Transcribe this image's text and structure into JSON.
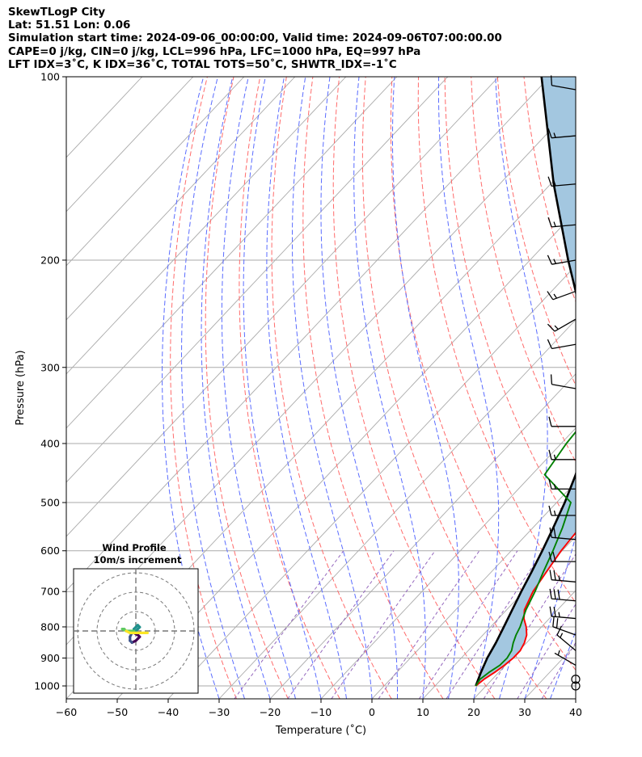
{
  "header": {
    "line1": "SkewTLogP City",
    "line2": "Lat: 51.51   Lon: 0.06",
    "line3": "Simulation start time: 2024-09-06_00:00:00, Valid time: 2024-09-06T07:00:00.00",
    "line4": "CAPE=0 j/kg, CIN=0 j/kg, LCL=996 hPa, LFC=1000 hPa, EQ=997 hPa",
    "line5": "LFT IDX=3˚C, K IDX=36˚C, TOTAL TOTS=50˚C, SHWTR_IDX=-1˚C"
  },
  "chart_data": {
    "type": "skewt",
    "xlabel": "Temperature (˚C)",
    "ylabel": "Pressure (hPa)",
    "xlim": [
      -60,
      40
    ],
    "ylim": [
      1050,
      100
    ],
    "x_ticks": [
      "−60",
      "−50",
      "−40",
      "−30",
      "−20",
      "−10",
      "0",
      "10",
      "20",
      "30",
      "40"
    ],
    "x_tick_values": [
      -60,
      -50,
      -40,
      -30,
      -20,
      -10,
      0,
      10,
      20,
      30,
      40
    ],
    "y_ticks": [
      "1000",
      "900",
      "800",
      "700",
      "600",
      "500",
      "400",
      "300",
      "200",
      "100"
    ],
    "y_tick_values": [
      1000,
      900,
      800,
      700,
      600,
      500,
      400,
      300,
      200,
      100
    ],
    "grid": true,
    "colors": {
      "temperature": "#ff0000",
      "dewpoint": "#008000",
      "parcel": "#000000",
      "cape_fill": "#a3c7e0",
      "dry_adiabat": "#ff6b6b",
      "moist_adiabat": "#5a6cff",
      "mixing_ratio": "#9467bd",
      "isotherm": "#aaaaaa"
    },
    "temperature": {
      "pressure": [
        1000,
        975,
        950,
        925,
        900,
        875,
        850,
        825,
        800,
        775,
        750,
        700,
        650,
        600,
        550,
        500,
        450,
        400,
        350,
        325,
        300,
        275,
        250,
        225,
        200,
        190,
        180,
        170,
        160,
        150,
        140,
        130,
        120,
        110,
        100
      ],
      "values": [
        18,
        18.4,
        19.2,
        19.8,
        20.2,
        20.2,
        19.6,
        18.6,
        17,
        15,
        13.5,
        11.8,
        10.8,
        9.8,
        9.2,
        8,
        6,
        4,
        1,
        -0.2,
        -1.8,
        -4.2,
        -6.6,
        -8.2,
        -7,
        -5.6,
        -4,
        -1.6,
        0.4,
        3,
        6,
        8.4,
        10.4,
        12.8,
        15.5
      ]
    },
    "dewpoint": {
      "pressure": [
        1000,
        975,
        950,
        925,
        900,
        875,
        850,
        825,
        800,
        775,
        750,
        700,
        650,
        600,
        550,
        500,
        450,
        400,
        375,
        350,
        325,
        300,
        275,
        250,
        225,
        210,
        200,
        190,
        180,
        165,
        160,
        150,
        140,
        130,
        120,
        110,
        100
      ],
      "values": [
        18,
        17.6,
        18.1,
        18.9,
        19,
        18.5,
        17.4,
        16.5,
        15.8,
        14.8,
        13.8,
        12.2,
        10.2,
        8.2,
        5.8,
        2.8,
        -7.5,
        -9,
        -9.4,
        -3,
        -2.2,
        -3.2,
        -6,
        -9.4,
        -12.8,
        -13.6,
        -14.2,
        -13.2,
        -12.6,
        -12.8,
        -14.4,
        -18.4,
        -20.7,
        -18.8,
        -16.8,
        -14.8,
        -12.8
      ]
    },
    "parcel": {
      "pressure": [
        1000,
        950,
        900,
        850,
        800,
        750,
        700,
        650,
        600,
        550,
        500,
        450,
        400,
        350,
        300,
        250,
        200,
        150,
        100
      ],
      "values": [
        18,
        16.5,
        15.1,
        14,
        12.6,
        11.1,
        9.5,
        7.9,
        6.1,
        4,
        1.6,
        -1.4,
        -5.4,
        -10.9,
        -18.3,
        -28.8,
        -42.5,
        -59.4,
        -81.6
      ]
    },
    "wind": {
      "pressure": [
        1000,
        975,
        925,
        875,
        825,
        775,
        725,
        675,
        625,
        575,
        525,
        475,
        425,
        375,
        325,
        275,
        250,
        225,
        200,
        175,
        150,
        125,
        105
      ],
      "speed_knots": [
        0,
        0,
        5,
        15,
        20,
        25,
        30,
        25,
        20,
        20,
        15,
        15,
        15,
        10,
        10,
        10,
        15,
        15,
        15,
        15,
        15,
        15,
        10
      ],
      "direction_deg": [
        0,
        0,
        300,
        310,
        290,
        275,
        275,
        275,
        270,
        275,
        270,
        270,
        270,
        270,
        280,
        260,
        240,
        250,
        260,
        265,
        265,
        265,
        280
      ]
    },
    "hodograph": {
      "title": "Wind Profile",
      "subtitle": "10m/s increment",
      "u": [
        0,
        -1,
        1,
        2,
        1,
        0,
        -2,
        -3,
        -3,
        -2,
        -1,
        -1,
        0,
        1,
        2,
        1,
        0,
        -1,
        -3,
        -5,
        -6,
        -7,
        -5,
        -3,
        0,
        2,
        4,
        6
      ],
      "v": [
        0,
        -1,
        -2,
        -3,
        -4,
        -5,
        -6,
        -5,
        -3,
        -1,
        0,
        1,
        2,
        3,
        2,
        1,
        0,
        0,
        0,
        0,
        1,
        1,
        0,
        -1,
        -1,
        -1,
        -1,
        -1
      ],
      "rings_ms": [
        10,
        20,
        30
      ]
    }
  }
}
